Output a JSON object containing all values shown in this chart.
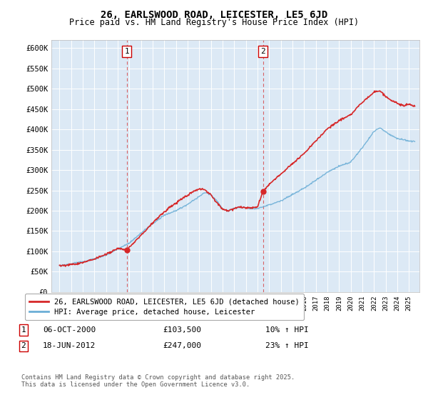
{
  "title1": "26, EARLSWOOD ROAD, LEICESTER, LE5 6JD",
  "title2": "Price paid vs. HM Land Registry's House Price Index (HPI)",
  "ylim": [
    0,
    620000
  ],
  "yticks": [
    0,
    50000,
    100000,
    150000,
    200000,
    250000,
    300000,
    350000,
    400000,
    450000,
    500000,
    550000,
    600000
  ],
  "ytick_labels": [
    "£0",
    "£50K",
    "£100K",
    "£150K",
    "£200K",
    "£250K",
    "£300K",
    "£350K",
    "£400K",
    "£450K",
    "£500K",
    "£550K",
    "£600K"
  ],
  "hpi_color": "#6baed6",
  "price_color": "#d62728",
  "marker_color": "#d62728",
  "vline_color": "#d62728",
  "box_edgecolor": "#cc0000",
  "background_color": "#dce9f5",
  "legend1": "26, EARLSWOOD ROAD, LEICESTER, LE5 6JD (detached house)",
  "legend2": "HPI: Average price, detached house, Leicester",
  "sale1_date": "06-OCT-2000",
  "sale1_price": "£103,500",
  "sale1_hpi": "10% ↑ HPI",
  "sale2_date": "18-JUN-2012",
  "sale2_price": "£247,000",
  "sale2_hpi": "23% ↑ HPI",
  "footnote": "Contains HM Land Registry data © Crown copyright and database right 2025.\nThis data is licensed under the Open Government Licence v3.0.",
  "sale1_year": 2000.77,
  "sale1_value": 103500,
  "sale2_year": 2012.46,
  "sale2_value": 247000,
  "xmin": 1995,
  "xmax": 2025.5
}
